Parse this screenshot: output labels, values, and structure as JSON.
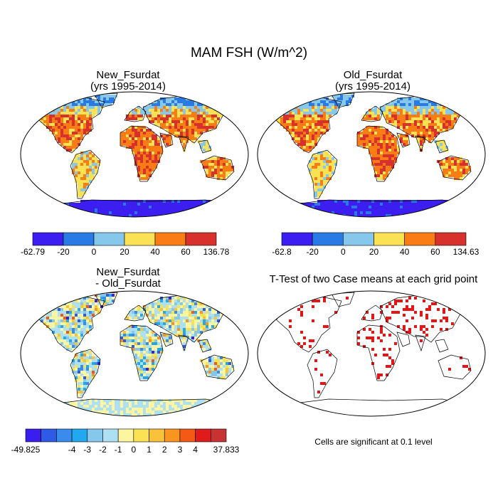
{
  "figure": {
    "title": "MAM FSH (W/m^2)",
    "note": "Cells are significant at 0.1 level"
  },
  "panels": [
    {
      "id": "new",
      "title_line1": "New_Fsurdat",
      "title_line2": "(yrs 1995-2014)",
      "colorbar": {
        "colors": [
          "#3c1ef0",
          "#2a7ae6",
          "#86c8ec",
          "#fbe255",
          "#f97d14",
          "#d8302c"
        ],
        "labels": [
          "-62.79",
          "-20",
          "0",
          "20",
          "40",
          "60",
          "136.78"
        ]
      }
    },
    {
      "id": "old",
      "title_line1": "Old_Fsurdat",
      "title_line2": "(yrs 1995-2014)",
      "colorbar": {
        "colors": [
          "#3c1ef0",
          "#2a7ae6",
          "#86c8ec",
          "#fbe255",
          "#f97d14",
          "#d8302c"
        ],
        "labels": [
          "-62.8",
          "-20",
          "0",
          "20",
          "40",
          "60",
          "134.63"
        ]
      }
    },
    {
      "id": "diff",
      "title_line1": "New_Fsurdat",
      "title_line2": "- Old_Fsurdat",
      "colorbar": {
        "colors": [
          "#3a1ef0",
          "#2e5ae6",
          "#3a8cec",
          "#21a8f0",
          "#86c8ec",
          "#aee0f4",
          "#fef5a0",
          "#fbe255",
          "#f9c23a",
          "#f9951e",
          "#f45a16",
          "#e01b1b",
          "#c83232"
        ],
        "labels": [
          "-49.825",
          "-4",
          "-3",
          "-2",
          "-1",
          "0",
          "1",
          "2",
          "3",
          "4",
          "37.833"
        ]
      }
    },
    {
      "id": "ttest",
      "title_line1": "T-Test of two Case means at each grid point",
      "title_line2": ""
    }
  ],
  "map_colors": {
    "ocean": "#ffffff",
    "outline": "#000000",
    "significant": "#e61414"
  }
}
